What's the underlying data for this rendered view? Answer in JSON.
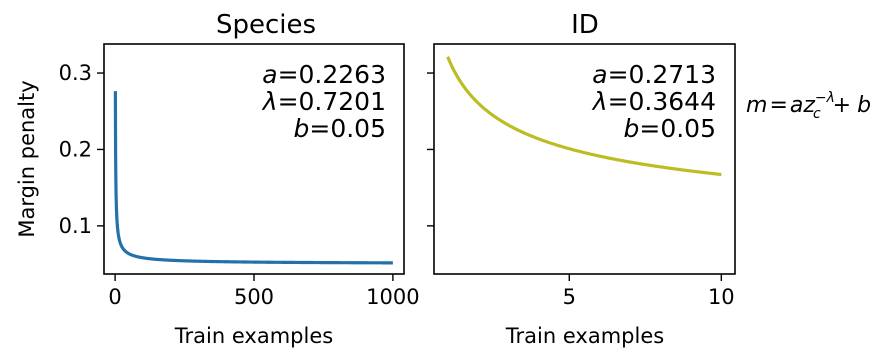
{
  "chart_data": [
    {
      "type": "line",
      "title": "Species",
      "xlabel": "Train examples",
      "ylabel": "Margin penalty",
      "xlim": [
        -40,
        1040
      ],
      "ylim": [
        0.037,
        0.338
      ],
      "xticks": [
        0,
        500,
        1000
      ],
      "xtick_labels": [
        "0",
        "500",
        "1000"
      ],
      "yticks": [
        0.1,
        0.2,
        0.3
      ],
      "ytick_labels": [
        "0.1",
        "0.2",
        "0.3"
      ],
      "grid": false,
      "model": {
        "a": 0.2263,
        "lambda": 0.7201,
        "b": 0.05
      },
      "x_range": [
        1,
        1000
      ],
      "series": [
        {
          "color": "#2471a9"
        }
      ],
      "annotations": [
        "a = 0.2263",
        "λ = 0.7201",
        "b = 0.05"
      ]
    },
    {
      "type": "line",
      "title": "ID",
      "xlabel": "Train examples",
      "ylabel": "",
      "xlim": [
        0.55,
        10.45
      ],
      "ylim": [
        0.037,
        0.338
      ],
      "xticks": [
        5,
        10
      ],
      "xtick_labels": [
        "5",
        "10"
      ],
      "yticks": [
        0.1,
        0.2,
        0.3
      ],
      "ytick_labels": [],
      "grid": false,
      "model": {
        "a": 0.2713,
        "lambda": 0.3644,
        "b": 0.05
      },
      "x_range": [
        1,
        10
      ],
      "series": [
        {
          "color": "#bcbd22"
        }
      ],
      "annotations": [
        "a = 0.2713",
        "λ = 0.3644",
        "b = 0.05"
      ]
    }
  ],
  "formula": {
    "lhs": "m",
    "eq": "=",
    "a": "a",
    "z": "z",
    "sub": "c",
    "sup": "−λ",
    "plus": "+",
    "b": "b"
  }
}
